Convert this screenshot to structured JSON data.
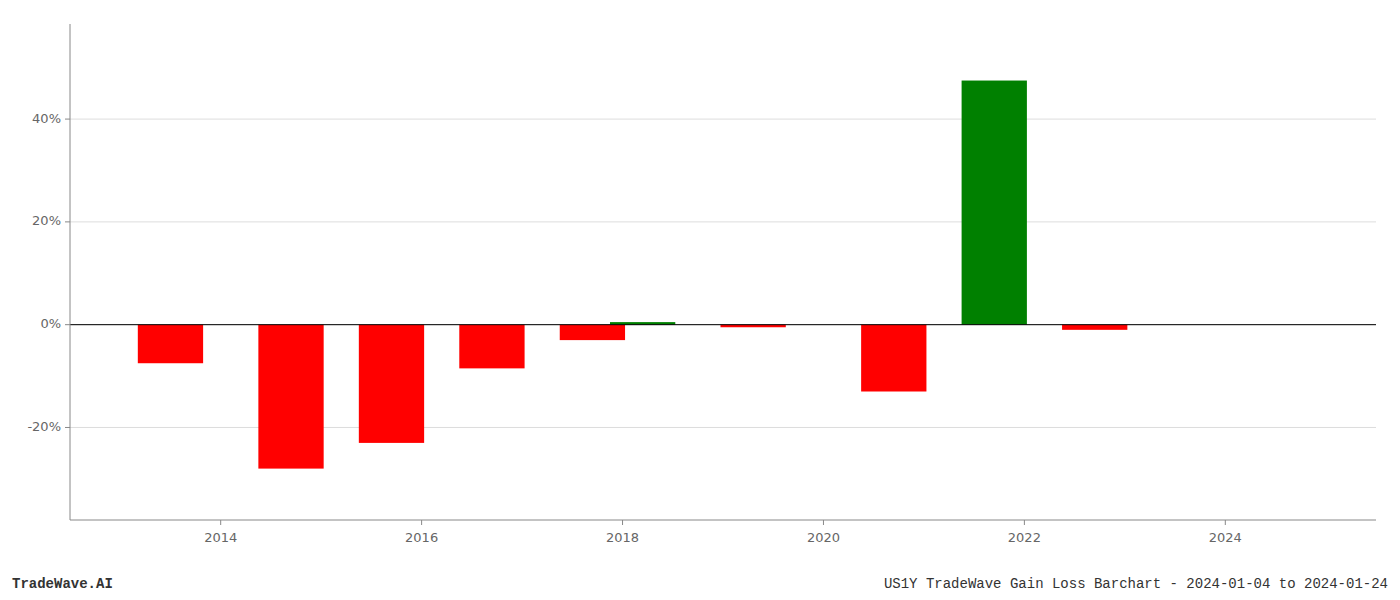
{
  "chart_data": {
    "type": "bar",
    "x": [
      2013.5,
      2014.7,
      2015.7,
      2016.7,
      2017.7,
      2018.2,
      2019.3,
      2020.7,
      2021.7,
      2022.7
    ],
    "values": [
      -0.075,
      -0.28,
      -0.23,
      -0.085,
      -0.03,
      0.005,
      -0.005,
      -0.13,
      0.475,
      -0.01
    ],
    "colors": [
      "#ff0000",
      "#ff0000",
      "#ff0000",
      "#ff0000",
      "#ff0000",
      "#008000",
      "#ff0000",
      "#ff0000",
      "#008000",
      "#ff0000"
    ],
    "xlim": [
      2012.5,
      2025.5
    ],
    "ylim": [
      -0.38,
      0.585
    ],
    "xticks": [
      2014,
      2016,
      2018,
      2020,
      2022,
      2024
    ],
    "yticks": [
      {
        "value": -0.2,
        "label": "-20%"
      },
      {
        "value": 0.0,
        "label": "0%"
      },
      {
        "value": 0.2,
        "label": "20%"
      },
      {
        "value": 0.4,
        "label": "40%"
      }
    ],
    "grid": true,
    "annotations": [
      "TradeWave.AI",
      "US1Y TradeWave Gain Loss Barchart - 2024-01-04 to 2024-01-24"
    ]
  }
}
